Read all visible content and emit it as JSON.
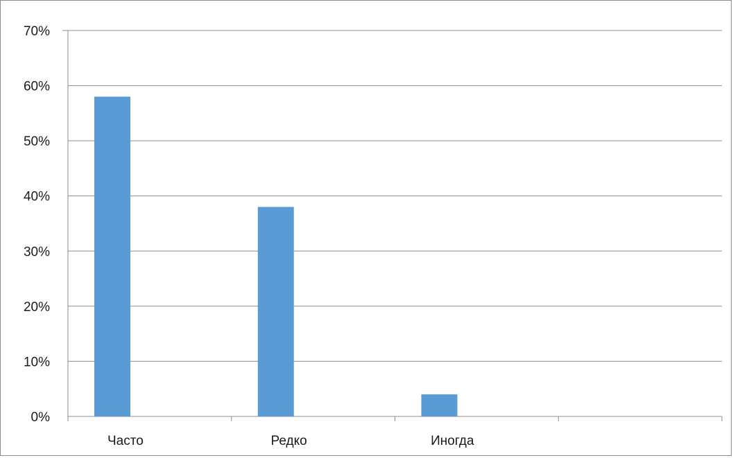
{
  "chart_data": {
    "type": "bar",
    "categories": [
      "Часто",
      "Редко",
      "Иногда",
      ""
    ],
    "values": [
      58,
      38,
      4,
      null
    ],
    "ylim": [
      0,
      70
    ],
    "y_ticks": [
      0,
      10,
      20,
      30,
      40,
      50,
      60,
      70
    ],
    "y_tick_suffix": "%",
    "grid": true,
    "legend": "none",
    "bar_color": "#5b9bd5",
    "grid_color": "#8c8c8c"
  }
}
